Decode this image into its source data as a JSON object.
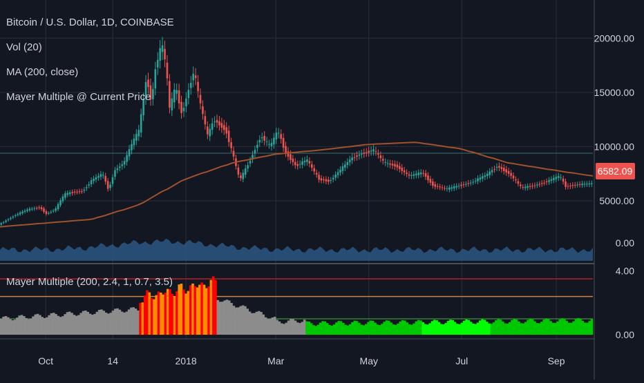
{
  "legend": {
    "symbol": "Bitcoin / U.S. Dollar, 1D, COINBASE",
    "volume": "Vol (20)",
    "ma": "MA (200, close)",
    "mayer_price": "Mayer Multiple @ Current Price",
    "mayer_pane": "Mayer Multiple (200, 2.4, 1, 0.7, 3.5)"
  },
  "price_axis": {
    "ticks": [
      "20000.00",
      "15000.00",
      "10000.00",
      "5000.00"
    ],
    "tick_values": [
      20000,
      15000,
      10000,
      5000
    ]
  },
  "volume_axis": {
    "ticks": [
      "0.00"
    ]
  },
  "mayer_axis": {
    "ticks": [
      "4.00",
      "0.00"
    ],
    "tick_values": [
      4,
      0
    ]
  },
  "x_axis": {
    "ticks": [
      "Oct",
      "14",
      "2018",
      "Mar",
      "May",
      "Jul",
      "Sep"
    ]
  },
  "current_price_label": "6582.09",
  "colors": {
    "background": "#131722",
    "up": "#26a69a",
    "down": "#ef5350",
    "ma": "#a0522d",
    "volume": "#2b5783",
    "price_label": "#ef5350",
    "mayer_gray": "#8c8c8c",
    "mayer_green": "#00c800",
    "mayer_bright_green": "#00ff00",
    "mayer_orange": "#ff8c00",
    "mayer_red": "#ff0000",
    "threshold_high": "#b22222",
    "threshold_mid": "#cd853f",
    "threshold_low": "#3a7d3a"
  },
  "chart_data": {
    "type": "line",
    "title": "Bitcoin / U.S. Dollar, 1D, COINBASE",
    "price_ylim": [
      1500,
      22500
    ],
    "mayer_ylim": [
      -0.3,
      4.2
    ],
    "mayer_thresholds": [
      3.5,
      2.4,
      1,
      0.7
    ],
    "price_path": [
      [
        "2017-09-01",
        2800
      ],
      [
        "2017-09-12",
        3700
      ],
      [
        "2017-09-20",
        4200
      ],
      [
        "2017-09-28",
        4400
      ],
      [
        "2017-10-02",
        3800
      ],
      [
        "2017-10-08",
        4200
      ],
      [
        "2017-10-14",
        5600
      ],
      [
        "2017-10-20",
        5800
      ],
      [
        "2017-10-26",
        5900
      ],
      [
        "2017-11-01",
        6900
      ],
      [
        "2017-11-08",
        7500
      ],
      [
        "2017-11-12",
        6000
      ],
      [
        "2017-11-16",
        7800
      ],
      [
        "2017-11-22",
        8500
      ],
      [
        "2017-11-28",
        10500
      ],
      [
        "2017-12-02",
        11500
      ],
      [
        "2017-12-07",
        16500
      ],
      [
        "2017-12-10",
        14000
      ],
      [
        "2017-12-13",
        17500
      ],
      [
        "2017-12-17",
        19500
      ],
      [
        "2017-12-20",
        17000
      ],
      [
        "2017-12-22",
        13500
      ],
      [
        "2017-12-26",
        15500
      ],
      [
        "2017-12-30",
        13000
      ],
      [
        "2018-01-03",
        15000
      ],
      [
        "2018-01-07",
        17000
      ],
      [
        "2018-01-11",
        14000
      ],
      [
        "2018-01-16",
        11000
      ],
      [
        "2018-01-20",
        12500
      ],
      [
        "2018-01-28",
        11500
      ],
      [
        "2018-02-02",
        9000
      ],
      [
        "2018-02-06",
        6900
      ],
      [
        "2018-02-12",
        8500
      ],
      [
        "2018-02-20",
        11000
      ],
      [
        "2018-02-26",
        10000
      ],
      [
        "2018-03-03",
        11500
      ],
      [
        "2018-03-08",
        9500
      ],
      [
        "2018-03-15",
        8200
      ],
      [
        "2018-03-22",
        8800
      ],
      [
        "2018-03-30",
        7000
      ],
      [
        "2018-04-06",
        6800
      ],
      [
        "2018-04-14",
        8000
      ],
      [
        "2018-04-20",
        8900
      ],
      [
        "2018-04-26",
        9300
      ],
      [
        "2018-05-05",
        9700
      ],
      [
        "2018-05-12",
        8500
      ],
      [
        "2018-05-20",
        8200
      ],
      [
        "2018-05-28",
        7300
      ],
      [
        "2018-06-06",
        7600
      ],
      [
        "2018-06-13",
        6400
      ],
      [
        "2018-06-22",
        6100
      ],
      [
        "2018-06-30",
        6400
      ],
      [
        "2018-07-08",
        6700
      ],
      [
        "2018-07-18",
        7400
      ],
      [
        "2018-07-25",
        8200
      ],
      [
        "2018-08-02",
        7500
      ],
      [
        "2018-08-10",
        6200
      ],
      [
        "2018-08-18",
        6400
      ],
      [
        "2018-08-25",
        6700
      ],
      [
        "2018-09-04",
        7300
      ],
      [
        "2018-09-08",
        6300
      ],
      [
        "2018-09-15",
        6500
      ],
      [
        "2018-09-25",
        6582
      ]
    ],
    "ma_path": [
      [
        "2017-09-01",
        2600
      ],
      [
        "2017-11-01",
        3300
      ],
      [
        "2017-12-01",
        4600
      ],
      [
        "2018-01-01",
        7000
      ],
      [
        "2018-02-01",
        8500
      ],
      [
        "2018-03-01",
        9300
      ],
      [
        "2018-04-01",
        9700
      ],
      [
        "2018-05-01",
        10200
      ],
      [
        "2018-06-01",
        10400
      ],
      [
        "2018-07-01",
        9800
      ],
      [
        "2018-08-01",
        8500
      ],
      [
        "2018-09-01",
        7800
      ],
      [
        "2018-09-25",
        7300
      ]
    ],
    "mayer_segments": [
      {
        "start": "2017-09-01",
        "end": "2017-11-30",
        "from": 1.0,
        "to": 1.6,
        "color": "gray"
      },
      {
        "start": "2017-12-01",
        "end": "2018-01-20",
        "from": 2.3,
        "to": 3.3,
        "color": "orange_red"
      },
      {
        "start": "2018-01-21",
        "end": "2018-02-28",
        "from": 2.3,
        "to": 1.0,
        "color": "gray"
      },
      {
        "start": "2018-03-01",
        "end": "2018-03-20",
        "from": 0.8,
        "to": 0.9,
        "color": "gray"
      },
      {
        "start": "2018-03-21",
        "end": "2018-09-25",
        "from": 0.7,
        "to": 0.9,
        "color": "green"
      }
    ]
  }
}
